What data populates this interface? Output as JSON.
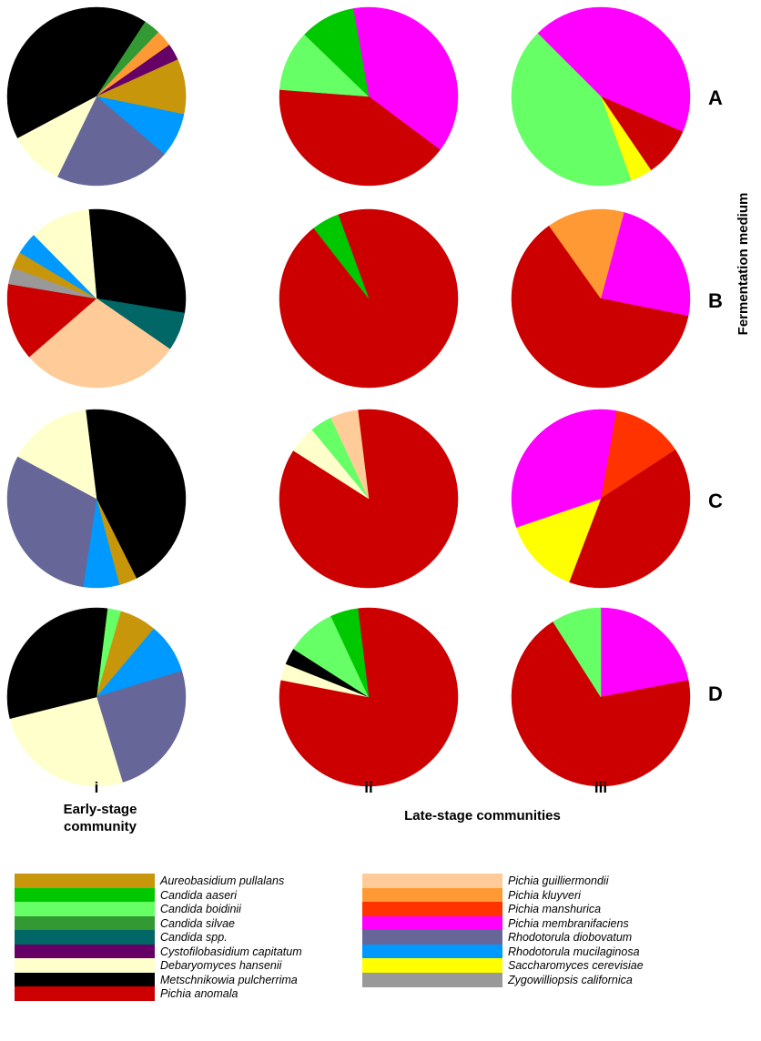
{
  "chart_data": {
    "type": "pie",
    "columns": [
      {
        "id": "i",
        "label": "i"
      },
      {
        "id": "ii",
        "label": "ii"
      },
      {
        "id": "iii",
        "label": "iii"
      }
    ],
    "rows": [
      {
        "id": "A",
        "label": "A"
      },
      {
        "id": "B",
        "label": "B"
      },
      {
        "id": "C",
        "label": "C"
      },
      {
        "id": "D",
        "label": "D"
      }
    ],
    "column_group_labels": {
      "early": "Early-stage community",
      "late": "Late-stage communities"
    },
    "row_axis_title": "Fermentation medium",
    "species": [
      {
        "key": "aureobasidium",
        "name": "Aureobasidium pullalans",
        "color": "#c8960a"
      },
      {
        "key": "c_aaseri",
        "name": "Candida aaseri",
        "color": "#00c800"
      },
      {
        "key": "c_boidinii",
        "name": "Candida boidinii",
        "color": "#66ff66"
      },
      {
        "key": "c_silvae",
        "name": "Candida silvae",
        "color": "#339933"
      },
      {
        "key": "c_spp",
        "name": "Candida spp.",
        "color": "#006666"
      },
      {
        "key": "cystofilobasidium",
        "name": "Cystofilobasidium capitatum",
        "color": "#660066"
      },
      {
        "key": "debaryomyces",
        "name": "Debaryomyces hansenii",
        "color": "#ffffcc"
      },
      {
        "key": "metschnikowia",
        "name": "Metschnikowia pulcherrima",
        "color": "#000000"
      },
      {
        "key": "p_anomala",
        "name": "Pichia anomala",
        "color": "#cc0000"
      },
      {
        "key": "p_guilliermondii",
        "name": "Pichia guilliermondii",
        "color": "#ffcc99"
      },
      {
        "key": "p_kluyveri",
        "name": "Pichia kluyveri",
        "color": "#ff9933"
      },
      {
        "key": "p_manshurica",
        "name": "Pichia manshurica",
        "color": "#ff3300"
      },
      {
        "key": "p_membranifaciens",
        "name": "Pichia membranifaciens",
        "color": "#ff00ff"
      },
      {
        "key": "r_diobovatum",
        "name": "Rhodotorula diobovatum",
        "color": "#666699"
      },
      {
        "key": "r_mucilaginosa",
        "name": "Rhodotorula mucilaginosa",
        "color": "#0099ff"
      },
      {
        "key": "s_cerevisiae",
        "name": "Saccharomyces cerevisiae",
        "color": "#ffff00"
      },
      {
        "key": "zygowilliopsis",
        "name": "Zygowilliopsis californica",
        "color": "#999999"
      }
    ],
    "pies": [
      {
        "row": "A",
        "col": "i",
        "slices": [
          {
            "species": "metschnikowia",
            "value": 42
          },
          {
            "species": "c_silvae",
            "value": 3
          },
          {
            "species": "p_kluyveri",
            "value": 3
          },
          {
            "species": "cystofilobasidium",
            "value": 3
          },
          {
            "species": "aureobasidium",
            "value": 10
          },
          {
            "species": "r_mucilaginosa",
            "value": 8
          },
          {
            "species": "r_diobovatum",
            "value": 21
          },
          {
            "species": "debaryomyces",
            "value": 10
          }
        ]
      },
      {
        "row": "A",
        "col": "ii",
        "slices": [
          {
            "species": "p_membranifaciens",
            "value": 38
          },
          {
            "species": "p_anomala",
            "value": 41
          },
          {
            "species": "c_boidinii",
            "value": 11
          },
          {
            "species": "c_aaseri",
            "value": 10
          }
        ]
      },
      {
        "row": "A",
        "col": "iii",
        "slices": [
          {
            "species": "p_membranifaciens",
            "value": 44
          },
          {
            "species": "p_anomala",
            "value": 9
          },
          {
            "species": "s_cerevisiae",
            "value": 4
          },
          {
            "species": "c_boidinii",
            "value": 43
          }
        ]
      },
      {
        "row": "B",
        "col": "i",
        "slices": [
          {
            "species": "metschnikowia",
            "value": 29
          },
          {
            "species": "c_spp",
            "value": 7
          },
          {
            "species": "p_guilliermondii",
            "value": 29
          },
          {
            "species": "p_anomala",
            "value": 14
          },
          {
            "species": "zygowilliopsis",
            "value": 3
          },
          {
            "species": "aureobasidium",
            "value": 3
          },
          {
            "species": "r_mucilaginosa",
            "value": 4
          },
          {
            "species": "debaryomyces",
            "value": 11
          }
        ]
      },
      {
        "row": "B",
        "col": "ii",
        "slices": [
          {
            "species": "p_anomala",
            "value": 95
          },
          {
            "species": "c_aaseri",
            "value": 5
          }
        ]
      },
      {
        "row": "B",
        "col": "iii",
        "slices": [
          {
            "species": "p_membranifaciens",
            "value": 24
          },
          {
            "species": "p_anomala",
            "value": 62
          },
          {
            "species": "p_kluyveri",
            "value": 14
          }
        ]
      },
      {
        "row": "C",
        "col": "i",
        "slices": [
          {
            "species": "metschnikowia",
            "value": 41
          },
          {
            "species": "aureobasidium",
            "value": 3
          },
          {
            "species": "r_mucilaginosa",
            "value": 6
          },
          {
            "species": "r_diobovatum",
            "value": 28
          },
          {
            "species": "debaryomyces",
            "value": 14
          }
        ]
      },
      {
        "row": "C",
        "col": "ii",
        "slices": [
          {
            "species": "p_anomala",
            "value": 86
          },
          {
            "species": "debaryomyces",
            "value": 5
          },
          {
            "species": "c_boidinii",
            "value": 4
          },
          {
            "species": "p_guilliermondii",
            "value": 5
          }
        ]
      },
      {
        "row": "C",
        "col": "iii",
        "slices": [
          {
            "species": "p_manshurica",
            "value": 13
          },
          {
            "species": "p_anomala",
            "value": 40
          },
          {
            "species": "s_cerevisiae",
            "value": 14
          },
          {
            "species": "p_membranifaciens",
            "value": 33
          }
        ]
      },
      {
        "row": "D",
        "col": "i",
        "slices": [
          {
            "species": "c_boidinii",
            "value": 3
          },
          {
            "species": "aureobasidium",
            "value": 8
          },
          {
            "species": "r_mucilaginosa",
            "value": 11
          },
          {
            "species": "r_diobovatum",
            "value": 30
          },
          {
            "species": "debaryomyces",
            "value": 31
          },
          {
            "species": "metschnikowia",
            "value": 37
          }
        ]
      },
      {
        "row": "D",
        "col": "ii",
        "slices": [
          {
            "species": "p_anomala",
            "value": 80
          },
          {
            "species": "debaryomyces",
            "value": 3
          },
          {
            "species": "metschnikowia",
            "value": 3
          },
          {
            "species": "c_boidinii",
            "value": 9
          },
          {
            "species": "c_aaseri",
            "value": 5
          }
        ]
      },
      {
        "row": "D",
        "col": "iii",
        "slices": [
          {
            "species": "p_membranifaciens",
            "value": 22
          },
          {
            "species": "p_anomala",
            "value": 69
          },
          {
            "species": "c_boidinii",
            "value": 9
          }
        ]
      }
    ]
  }
}
